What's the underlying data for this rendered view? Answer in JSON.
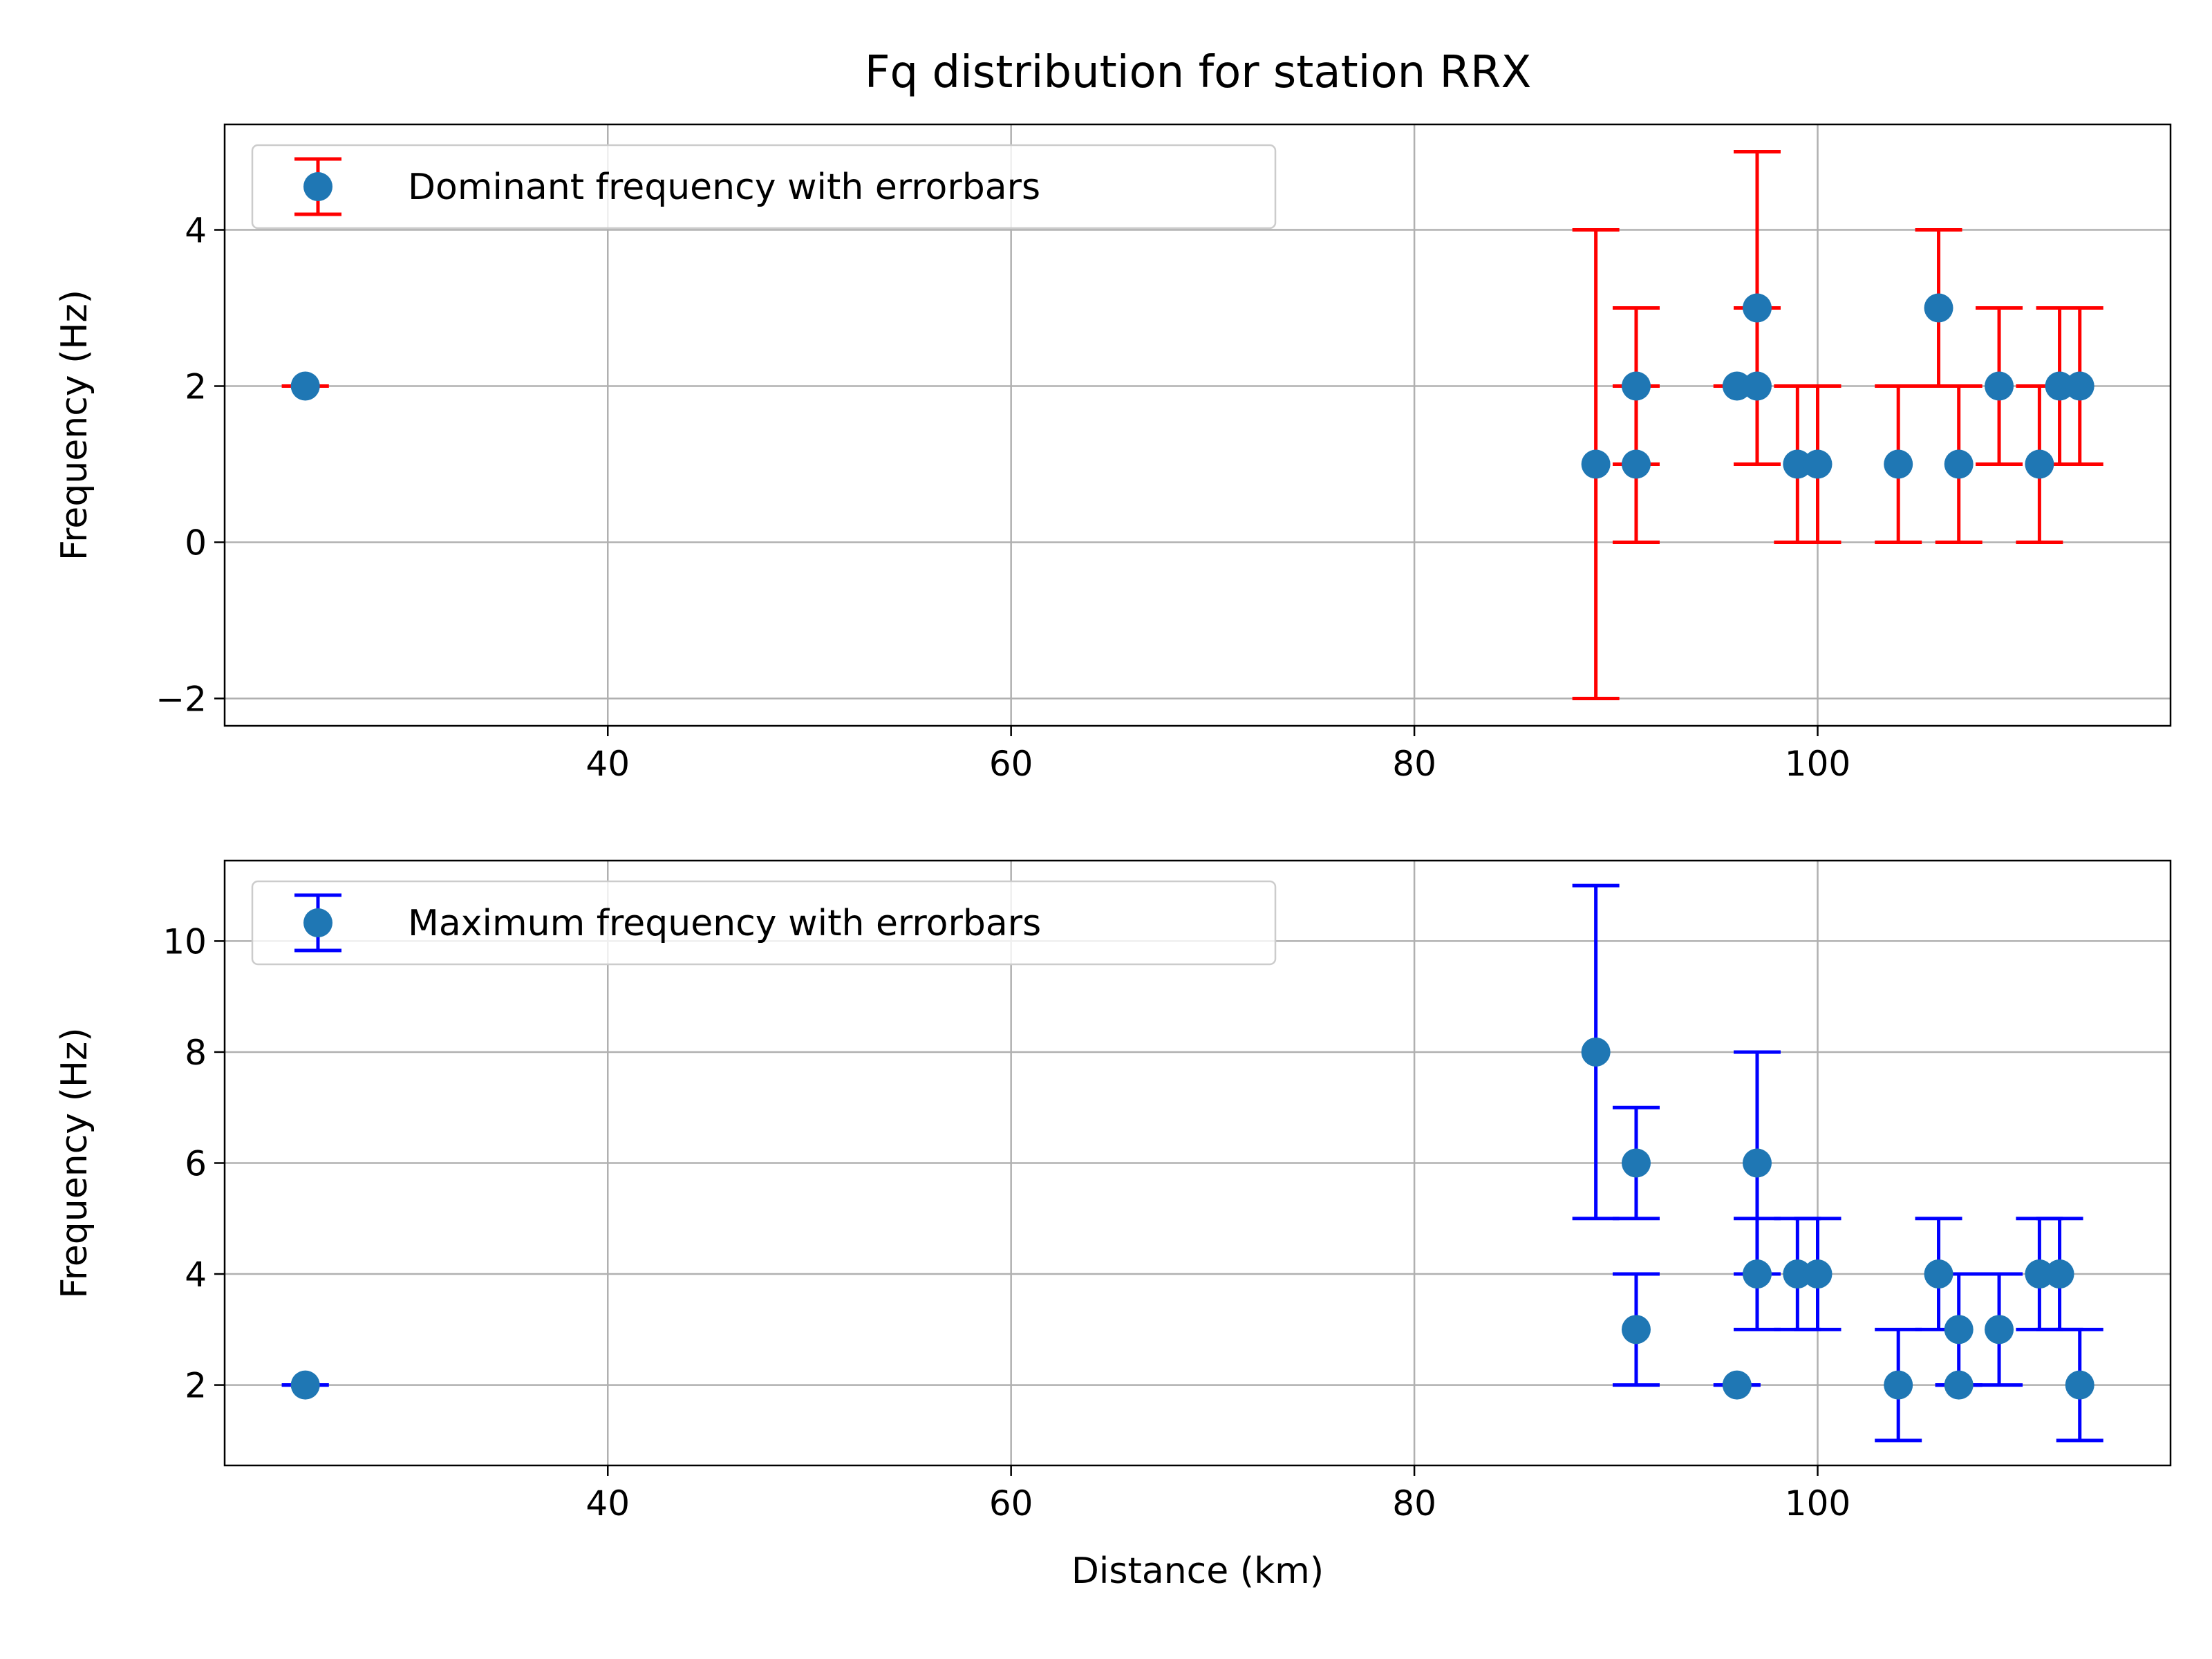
{
  "figure": {
    "title": "Fq distribution for station RRX"
  },
  "chart_data": [
    {
      "type": "scatter",
      "title": "",
      "xlabel": "",
      "ylabel": "Frequency (Hz)",
      "xlim": [
        21,
        117.5
      ],
      "ylim": [
        -2.35,
        5.35
      ],
      "xticks": [
        40,
        60,
        80,
        100
      ],
      "yticks": [
        -2,
        0,
        2,
        4
      ],
      "grid": true,
      "legend_position": "top-left",
      "series": [
        {
          "name": "Dominant frequency with errorbars",
          "marker_color": "#1f77b4",
          "error_color": "#ff0000",
          "x": [
            25,
            89,
            91,
            91,
            96,
            97,
            97,
            99,
            100,
            104,
            106,
            107,
            109,
            111,
            112,
            113
          ],
          "y": [
            2,
            1,
            2,
            1,
            2,
            3,
            2,
            1,
            1,
            1,
            3,
            1,
            2,
            1,
            2,
            2
          ],
          "err": [
            0,
            3,
            1,
            1,
            0,
            2,
            1,
            1,
            1,
            1,
            1,
            1,
            1,
            1,
            1,
            1
          ]
        }
      ]
    },
    {
      "type": "scatter",
      "title": "",
      "xlabel": "Distance (km)",
      "ylabel": "Frequency (Hz)",
      "xlim": [
        21,
        117.5
      ],
      "ylim": [
        0.55,
        11.45
      ],
      "xticks": [
        40,
        60,
        80,
        100
      ],
      "yticks": [
        2,
        4,
        6,
        8,
        10
      ],
      "grid": true,
      "legend_position": "top-left",
      "series": [
        {
          "name": "Maximum frequency with errorbars",
          "marker_color": "#1f77b4",
          "error_color": "#0000ff",
          "x": [
            25,
            89,
            91,
            91,
            96,
            97,
            97,
            99,
            100,
            104,
            106,
            107,
            107,
            109,
            111,
            112,
            113
          ],
          "y": [
            2,
            8,
            6,
            3,
            2,
            6,
            4,
            4,
            4,
            2,
            4,
            3,
            2,
            3,
            4,
            4,
            2
          ],
          "err": [
            0,
            3,
            1,
            1,
            0,
            2,
            1,
            1,
            1,
            1,
            1,
            1,
            0,
            1,
            1,
            1,
            1
          ]
        }
      ]
    }
  ]
}
